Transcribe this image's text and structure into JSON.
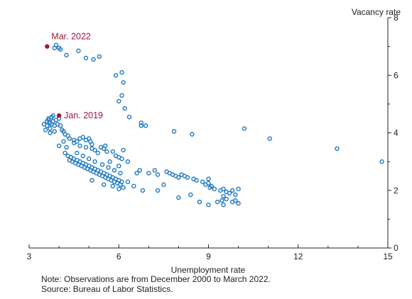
{
  "chart_data": {
    "type": "scatter",
    "xlabel": "Unemployment rate",
    "ylabel": "Vacancy rate",
    "xlim": [
      3,
      15
    ],
    "ylim": [
      0,
      8
    ],
    "x_ticks": [
      "3",
      "6",
      "9",
      "12",
      "15"
    ],
    "y_ticks": [
      "0",
      "2",
      "4",
      "6",
      "8"
    ],
    "y_axis_side": "right",
    "grid": false,
    "colors": {
      "points": "#1f78c1",
      "highlight": "#a0193a",
      "axis": "#222222"
    },
    "series": [
      {
        "marker": "open-circle",
        "points": [
          [
            3.5,
            4.3
          ],
          [
            3.55,
            4.1
          ],
          [
            3.6,
            4.4
          ],
          [
            3.6,
            4.25
          ],
          [
            3.65,
            4.5
          ],
          [
            3.7,
            4.35
          ],
          [
            3.7,
            4.15
          ],
          [
            3.75,
            4.55
          ],
          [
            3.8,
            4.4
          ],
          [
            3.85,
            4.25
          ],
          [
            3.85,
            4.05
          ],
          [
            3.8,
            4.6
          ],
          [
            3.9,
            4.45
          ],
          [
            3.95,
            4.3
          ],
          [
            3.7,
            4.0
          ],
          [
            4.0,
            4.5
          ],
          [
            4.05,
            4.25
          ],
          [
            4.1,
            4.1
          ],
          [
            4.15,
            4.05
          ],
          [
            4.2,
            3.95
          ],
          [
            4.3,
            3.9
          ],
          [
            4.35,
            3.8
          ],
          [
            4.5,
            3.75
          ],
          [
            4.6,
            3.7
          ],
          [
            4.7,
            3.8
          ],
          [
            4.8,
            3.85
          ],
          [
            4.9,
            3.75
          ],
          [
            5.0,
            3.8
          ],
          [
            5.05,
            3.7
          ],
          [
            5.1,
            3.6
          ],
          [
            4.5,
            3.65
          ],
          [
            4.7,
            3.55
          ],
          [
            4.9,
            3.5
          ],
          [
            5.1,
            3.45
          ],
          [
            5.2,
            3.4
          ],
          [
            5.4,
            3.5
          ],
          [
            5.5,
            3.45
          ],
          [
            5.6,
            3.35
          ],
          [
            5.8,
            3.35
          ],
          [
            5.9,
            3.2
          ],
          [
            6.0,
            3.15
          ],
          [
            6.1,
            3.1
          ],
          [
            6.15,
            3.4
          ],
          [
            6.3,
            3.0
          ],
          [
            4.0,
            3.55
          ],
          [
            4.2,
            3.3
          ],
          [
            4.3,
            3.2
          ],
          [
            4.4,
            3.15
          ],
          [
            4.5,
            3.1
          ],
          [
            4.6,
            3.05
          ],
          [
            4.7,
            3.0
          ],
          [
            4.8,
            2.95
          ],
          [
            4.9,
            2.9
          ],
          [
            5.0,
            2.85
          ],
          [
            5.1,
            2.8
          ],
          [
            5.2,
            2.75
          ],
          [
            5.3,
            2.7
          ],
          [
            5.4,
            2.65
          ],
          [
            5.5,
            2.6
          ],
          [
            5.6,
            2.55
          ],
          [
            5.7,
            2.5
          ],
          [
            5.8,
            2.45
          ],
          [
            5.9,
            2.4
          ],
          [
            6.0,
            2.35
          ],
          [
            6.1,
            2.3
          ],
          [
            4.35,
            3.05
          ],
          [
            4.45,
            3.0
          ],
          [
            4.55,
            2.95
          ],
          [
            4.65,
            2.9
          ],
          [
            4.75,
            2.85
          ],
          [
            4.85,
            2.8
          ],
          [
            4.95,
            2.75
          ],
          [
            5.05,
            2.7
          ],
          [
            5.15,
            2.65
          ],
          [
            5.25,
            2.6
          ],
          [
            5.35,
            2.55
          ],
          [
            5.45,
            2.5
          ],
          [
            5.55,
            2.45
          ],
          [
            5.65,
            2.4
          ],
          [
            5.75,
            2.35
          ],
          [
            5.85,
            2.3
          ],
          [
            5.95,
            2.25
          ],
          [
            6.05,
            2.2
          ],
          [
            6.15,
            2.1
          ],
          [
            4.6,
            3.3
          ],
          [
            4.8,
            3.2
          ],
          [
            5.0,
            3.1
          ],
          [
            5.2,
            3.0
          ],
          [
            5.45,
            2.9
          ],
          [
            5.65,
            2.8
          ],
          [
            5.85,
            2.7
          ],
          [
            6.05,
            2.6
          ],
          [
            5.1,
            2.35
          ],
          [
            5.5,
            2.2
          ],
          [
            5.8,
            2.15
          ],
          [
            6.0,
            2.05
          ],
          [
            6.3,
            2.3
          ],
          [
            6.5,
            2.15
          ],
          [
            6.6,
            2.6
          ],
          [
            6.7,
            2.7
          ],
          [
            6.8,
            2.0
          ],
          [
            7.0,
            2.6
          ],
          [
            7.2,
            2.7
          ],
          [
            7.3,
            2.55
          ],
          [
            7.5,
            2.2
          ],
          [
            7.6,
            2.65
          ],
          [
            7.7,
            2.6
          ],
          [
            7.8,
            2.55
          ],
          [
            7.9,
            2.5
          ],
          [
            8.0,
            2.45
          ],
          [
            8.1,
            2.55
          ],
          [
            8.2,
            2.5
          ],
          [
            8.3,
            2.45
          ],
          [
            8.5,
            2.4
          ],
          [
            8.6,
            2.35
          ],
          [
            8.8,
            2.3
          ],
          [
            9.0,
            2.25
          ],
          [
            9.05,
            2.1
          ],
          [
            9.1,
            2.15
          ],
          [
            9.2,
            2.05
          ],
          [
            9.0,
            2.4
          ],
          [
            8.9,
            2.2
          ],
          [
            9.4,
            2.0
          ],
          [
            9.5,
            2.05
          ],
          [
            9.6,
            1.95
          ],
          [
            9.7,
            1.9
          ],
          [
            9.8,
            2.0
          ],
          [
            9.9,
            1.85
          ],
          [
            10.0,
            2.05
          ],
          [
            9.5,
            1.8
          ],
          [
            9.6,
            1.7
          ],
          [
            9.8,
            1.6
          ],
          [
            10.0,
            1.55
          ],
          [
            9.9,
            1.65
          ],
          [
            9.5,
            1.5
          ],
          [
            9.3,
            1.6
          ],
          [
            9.0,
            1.5
          ],
          [
            8.7,
            1.6
          ],
          [
            8.4,
            1.85
          ],
          [
            8.0,
            1.75
          ],
          [
            7.3,
            2.0
          ],
          [
            9.45,
            1.65
          ],
          [
            6.1,
            5.3
          ],
          [
            6.0,
            5.1
          ],
          [
            6.1,
            6.1
          ],
          [
            5.9,
            6.0
          ],
          [
            6.15,
            5.75
          ],
          [
            6.2,
            4.85
          ],
          [
            6.35,
            4.55
          ],
          [
            6.75,
            4.35
          ],
          [
            6.75,
            4.25
          ],
          [
            6.9,
            4.25
          ],
          [
            7.85,
            4.05
          ],
          [
            8.45,
            3.95
          ],
          [
            10.2,
            4.15
          ],
          [
            11.05,
            3.8
          ],
          [
            13.3,
            3.45
          ],
          [
            14.8,
            3.0
          ],
          [
            5.35,
            6.65
          ],
          [
            5.15,
            6.55
          ],
          [
            4.9,
            6.6
          ],
          [
            4.65,
            6.85
          ],
          [
            4.25,
            6.7
          ],
          [
            4.0,
            6.95
          ],
          [
            3.85,
            6.95
          ],
          [
            3.9,
            7.05
          ],
          [
            4.05,
            6.9
          ],
          [
            3.65,
            4.45
          ],
          [
            3.75,
            4.3
          ],
          [
            4.15,
            3.7
          ],
          [
            4.25,
            3.5
          ],
          [
            5.3,
            3.3
          ],
          [
            5.7,
            3.0
          ],
          [
            6.0,
            2.85
          ],
          [
            5.55,
            3.55
          ]
        ]
      }
    ],
    "highlights": [
      {
        "label": "Mar. 2022",
        "x": 3.6,
        "y": 7.0
      },
      {
        "label": "Jan. 2019",
        "x": 4.0,
        "y": 4.6
      }
    ]
  },
  "notes": {
    "line1": "Note: Observations are from December 2000 to March 2022.",
    "line2": "Source: Bureau of Labor Statistics."
  }
}
